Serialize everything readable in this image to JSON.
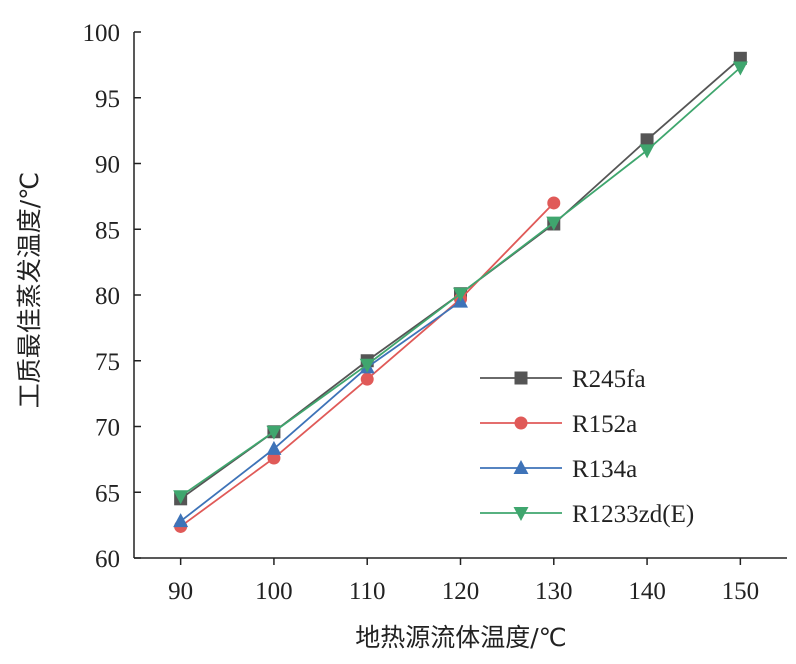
{
  "chart_data": {
    "type": "line",
    "title": "",
    "xlabel": "地热源流体温度/℃",
    "ylabel": "工质最佳蒸发温度/℃",
    "categories": [
      90,
      100,
      110,
      120,
      130,
      140,
      150
    ],
    "x_ticks": [
      "90",
      "100",
      "110",
      "120",
      "130",
      "140",
      "150"
    ],
    "ylim": [
      60,
      100
    ],
    "y_ticks": [
      "60",
      "65",
      "70",
      "75",
      "80",
      "85",
      "90",
      "95",
      "100"
    ],
    "grid": false,
    "legend_position": "bottom-right",
    "series": [
      {
        "name": "R245fa",
        "marker": "square",
        "color": "#555555",
        "x": [
          90,
          100,
          110,
          120,
          130,
          140,
          150
        ],
        "values": [
          64.5,
          69.6,
          75.0,
          80.1,
          85.4,
          91.8,
          98.0
        ]
      },
      {
        "name": "R152a",
        "marker": "circle",
        "color": "#e05a58",
        "x": [
          90,
          100,
          110,
          120,
          130
        ],
        "values": [
          62.4,
          67.6,
          73.6,
          79.7,
          87.0
        ]
      },
      {
        "name": "R134a",
        "marker": "triangle-up",
        "color": "#3e73b8",
        "x": [
          90,
          100,
          110,
          120
        ],
        "values": [
          62.8,
          68.3,
          74.5,
          79.5
        ]
      },
      {
        "name": "R1233zd(E)",
        "marker": "triangle-down",
        "color": "#3fa66e",
        "x": [
          90,
          100,
          110,
          120,
          130,
          140,
          150
        ],
        "values": [
          64.7,
          69.6,
          74.7,
          80.1,
          85.5,
          91.0,
          97.3
        ]
      }
    ]
  }
}
